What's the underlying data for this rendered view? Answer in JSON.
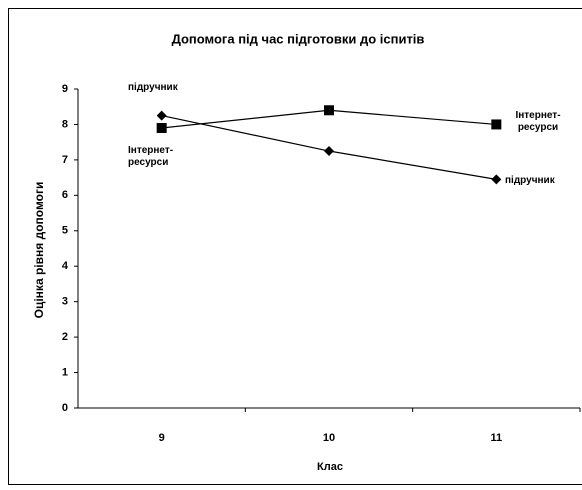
{
  "chart_data": {
    "type": "line",
    "title": "Допомога під час підготовки до іспитів",
    "x_label": "Клас",
    "y_label": "Оцінка рівня допомоги",
    "categories": [
      "9",
      "10",
      "11"
    ],
    "series": [
      {
        "name": "підручник",
        "color": "#000000",
        "marker": "diamond",
        "values": [
          8.25,
          7.25,
          6.45
        ]
      },
      {
        "name": "Інтернет-ресурси",
        "color": "#000000",
        "marker": "square",
        "values": [
          7.9,
          8.4,
          8.0
        ]
      }
    ],
    "ylim": [
      0,
      9
    ],
    "yticks": [
      0,
      1,
      2,
      3,
      4,
      5,
      6,
      7,
      8,
      9
    ],
    "grid": false
  }
}
